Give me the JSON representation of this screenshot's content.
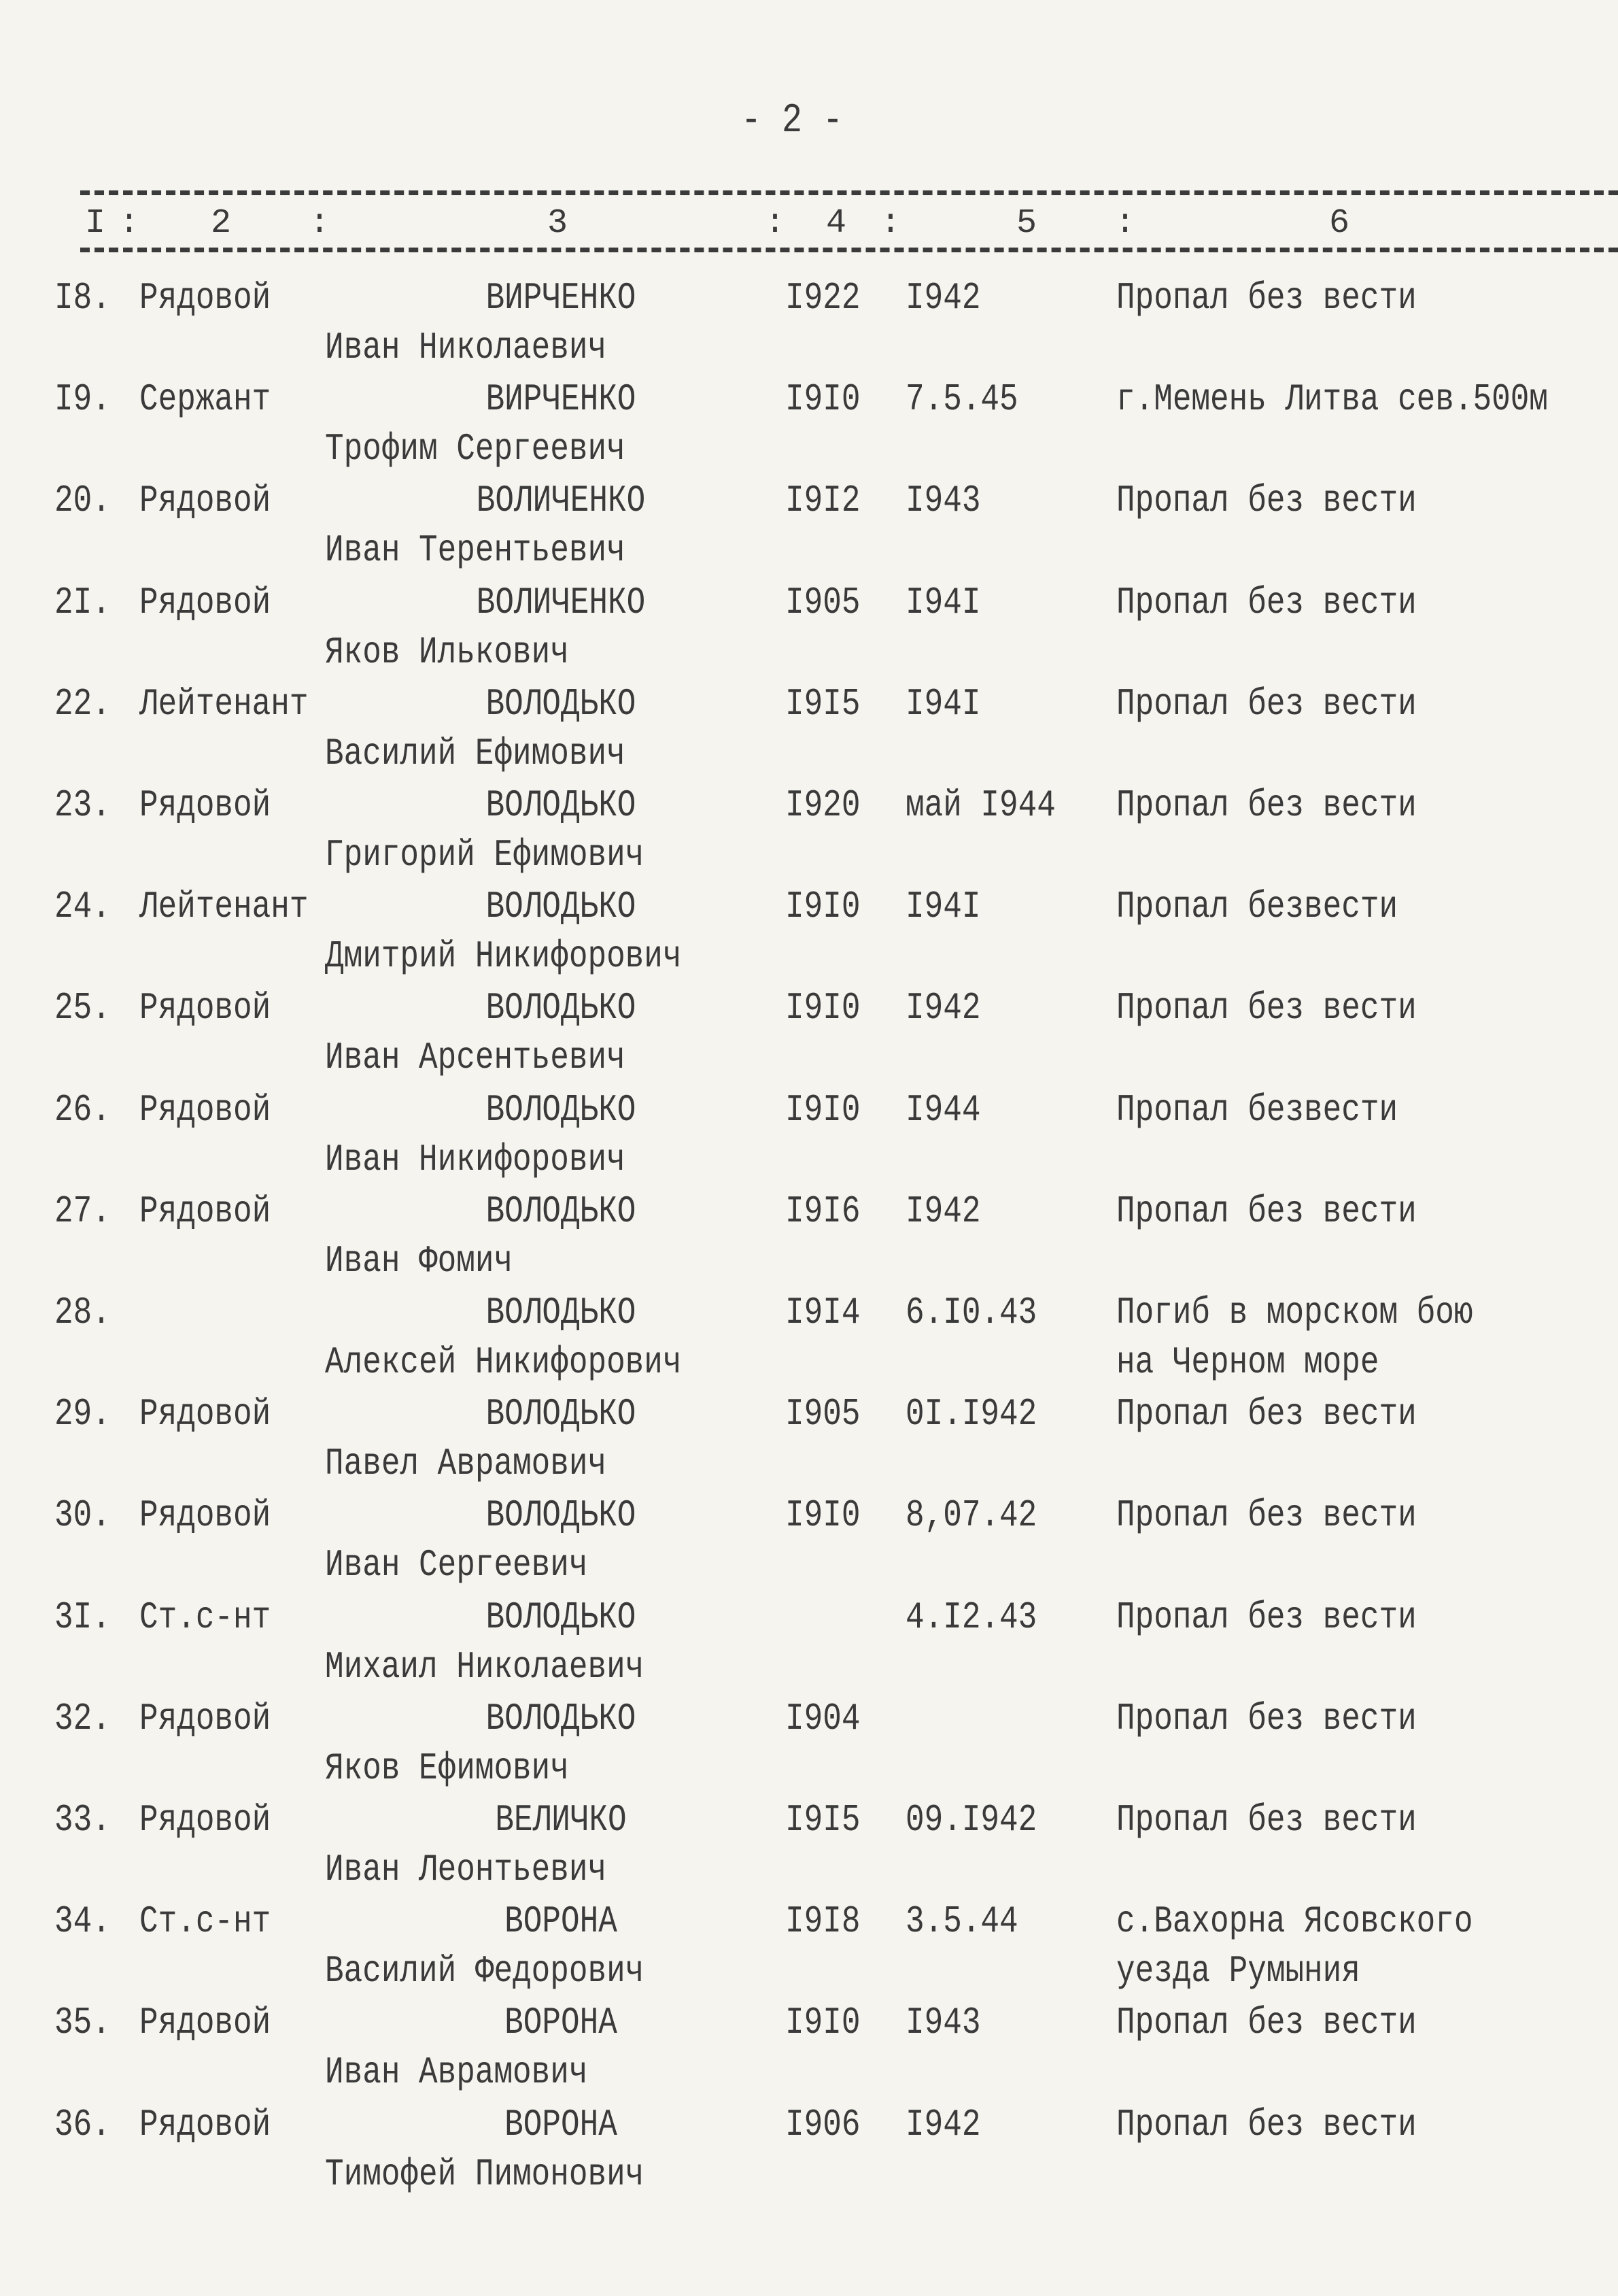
{
  "page_number": "- 2 -",
  "columns": [
    "I",
    "2",
    "3",
    "4",
    "5",
    "6"
  ],
  "rows": [
    {
      "num": "I8.",
      "rank": "Рядовой",
      "surname": "ВИРЧЕНКО",
      "name": "Иван Николаевич",
      "born": "I922",
      "date": "I942",
      "note": "Пропал без вести",
      "note2": ""
    },
    {
      "num": "I9.",
      "rank": "Сержант",
      "surname": "ВИРЧЕНКО",
      "name": "Трофим Сергеевич",
      "born": "I9I0",
      "date": "7.5.45",
      "note": "г.Мемень Литва сев.500м",
      "note2": ""
    },
    {
      "num": "20.",
      "rank": "Рядовой",
      "surname": "ВОЛИЧЕНКО",
      "name": "Иван Терентьевич",
      "born": "I9I2",
      "date": "I943",
      "note": "Пропал без вести",
      "note2": ""
    },
    {
      "num": "2I.",
      "rank": "Рядовой",
      "surname": "ВОЛИЧЕНКО",
      "name": "Яков Илькович",
      "born": "I905",
      "date": "I94I",
      "note": "Пропал без вести",
      "note2": ""
    },
    {
      "num": "22.",
      "rank": "Лейтенант",
      "surname": "ВОЛОДЬКО",
      "name": "Василий Ефимович",
      "born": "I9I5",
      "date": "I94I",
      "note": "Пропал без вести",
      "note2": ""
    },
    {
      "num": "23.",
      "rank": "Рядовой",
      "surname": "ВОЛОДЬКО",
      "name": "Григорий Ефимович",
      "born": "I920",
      "date": "май I944",
      "note": "Пропал без вести",
      "note2": ""
    },
    {
      "num": "24.",
      "rank": "Лейтенант",
      "surname": "ВОЛОДЬКО",
      "name": "Дмитрий Никифорович",
      "born": "I9I0",
      "date": "I94I",
      "note": "Пропал безвести",
      "note2": ""
    },
    {
      "num": "25.",
      "rank": "Рядовой",
      "surname": "ВОЛОДЬКО",
      "name": "Иван Арсентьевич",
      "born": "I9I0",
      "date": "I942",
      "note": "Пропал без вести",
      "note2": ""
    },
    {
      "num": "26.",
      "rank": "Рядовой",
      "surname": "ВОЛОДЬКО",
      "name": "Иван Никифорович",
      "born": "I9I0",
      "date": "I944",
      "note": "Пропал безвести",
      "note2": ""
    },
    {
      "num": "27.",
      "rank": "Рядовой",
      "surname": "ВОЛОДЬКО",
      "name": "Иван Фомич",
      "born": "I9I6",
      "date": "I942",
      "note": "Пропал без вести",
      "note2": ""
    },
    {
      "num": "28.",
      "rank": "",
      "surname": "ВОЛОДЬКО",
      "name": "Алексей Никифорович",
      "born": "I9I4",
      "date": "6.I0.43",
      "note": "Погиб в морском бою",
      "note2": "на Черном море"
    },
    {
      "num": "29.",
      "rank": "Рядовой",
      "surname": "ВОЛОДЬКО",
      "name": "Павел Аврамович",
      "born": "I905",
      "date": "0I.I942",
      "note": "Пропал без вести",
      "note2": ""
    },
    {
      "num": "30.",
      "rank": "Рядовой",
      "surname": "ВОЛОДЬКО",
      "name": "Иван Сергеевич",
      "born": "I9I0",
      "date": "8,07.42",
      "note": "Пропал без вести",
      "note2": ""
    },
    {
      "num": "3I.",
      "rank": "Ст.с-нт",
      "surname": "ВОЛОДЬКО",
      "name": "Михаил Николаевич",
      "born": "",
      "date": "4.I2.43",
      "note": "Пропал без вести",
      "note2": ""
    },
    {
      "num": "32.",
      "rank": "Рядовой",
      "surname": "ВОЛОДЬКО",
      "name": "Яков Ефимович",
      "born": "I904",
      "date": "",
      "note": "Пропал без вести",
      "note2": ""
    },
    {
      "num": "33.",
      "rank": "Рядовой",
      "surname": "ВЕЛИЧКО",
      "name": "Иван Леонтьевич",
      "born": "I9I5",
      "date": "09.I942",
      "note": "Пропал без вести",
      "note2": ""
    },
    {
      "num": "34.",
      "rank": "Ст.с-нт",
      "surname": "ВОРОНА",
      "name": "Василий Федорович",
      "born": "I9I8",
      "date": "3.5.44",
      "note": "с.Вахорна Ясовского",
      "note2": "уезда Румыния"
    },
    {
      "num": "35.",
      "rank": "Рядовой",
      "surname": "ВОРОНА",
      "name": "Иван Аврамович",
      "born": "I9I0",
      "date": "I943",
      "note": "Пропал без вести",
      "note2": ""
    },
    {
      "num": "36.",
      "rank": "Рядовой",
      "surname": "ВОРОНА",
      "name": "Тимофей Пимонович",
      "born": "I906",
      "date": "I942",
      "note": "Пропал без вести",
      "note2": ""
    }
  ]
}
